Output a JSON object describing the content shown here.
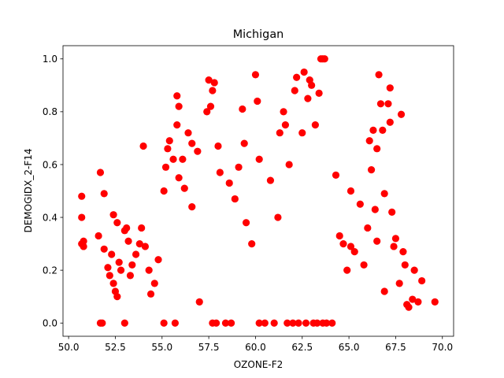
{
  "chart_data": {
    "type": "scatter",
    "title": "Michigan",
    "xlabel": "OZONE-F2",
    "ylabel": "DEMOGIDX_2-F14",
    "xlim": [
      49.7,
      70.6
    ],
    "ylim": [
      -0.05,
      1.05
    ],
    "xticks": [
      "50.0",
      "52.5",
      "55.0",
      "57.5",
      "60.0",
      "62.5",
      "65.0",
      "67.5",
      "70.0"
    ],
    "yticks": [
      "0.0",
      "0.2",
      "0.4",
      "0.6",
      "0.8",
      "1.0"
    ],
    "grid": false,
    "legend": "none",
    "marker_color": "#ff0000",
    "series": [
      {
        "values": [
          [
            50.7,
            0.48
          ],
          [
            50.7,
            0.4
          ],
          [
            50.7,
            0.3
          ],
          [
            50.8,
            0.31
          ],
          [
            50.8,
            0.29
          ],
          [
            51.6,
            0.33
          ],
          [
            51.7,
            0.57
          ],
          [
            51.7,
            0.0
          ],
          [
            51.8,
            0.0
          ],
          [
            51.9,
            0.49
          ],
          [
            51.9,
            0.28
          ],
          [
            52.1,
            0.21
          ],
          [
            52.2,
            0.18
          ],
          [
            52.3,
            0.26
          ],
          [
            52.4,
            0.41
          ],
          [
            52.4,
            0.15
          ],
          [
            52.5,
            0.12
          ],
          [
            52.6,
            0.1
          ],
          [
            52.6,
            0.38
          ],
          [
            52.7,
            0.23
          ],
          [
            52.8,
            0.2
          ],
          [
            53.0,
            0.0
          ],
          [
            53.0,
            0.35
          ],
          [
            53.1,
            0.36
          ],
          [
            53.2,
            0.31
          ],
          [
            53.3,
            0.18
          ],
          [
            53.4,
            0.22
          ],
          [
            53.6,
            0.26
          ],
          [
            53.8,
            0.3
          ],
          [
            53.9,
            0.36
          ],
          [
            54.0,
            0.67
          ],
          [
            54.1,
            0.29
          ],
          [
            54.3,
            0.2
          ],
          [
            54.4,
            0.11
          ],
          [
            54.6,
            0.15
          ],
          [
            54.8,
            0.24
          ],
          [
            55.1,
            0.0
          ],
          [
            55.1,
            0.5
          ],
          [
            55.2,
            0.59
          ],
          [
            55.3,
            0.66
          ],
          [
            55.4,
            0.69
          ],
          [
            55.6,
            0.62
          ],
          [
            55.7,
            0.0
          ],
          [
            55.8,
            0.75
          ],
          [
            55.8,
            0.86
          ],
          [
            55.9,
            0.82
          ],
          [
            55.9,
            0.55
          ],
          [
            56.1,
            0.62
          ],
          [
            56.2,
            0.51
          ],
          [
            56.4,
            0.72
          ],
          [
            56.6,
            0.68
          ],
          [
            56.6,
            0.44
          ],
          [
            56.9,
            0.65
          ],
          [
            57.0,
            0.08
          ],
          [
            57.4,
            0.8
          ],
          [
            57.5,
            0.92
          ],
          [
            57.6,
            0.82
          ],
          [
            57.7,
            0.88
          ],
          [
            57.8,
            0.91
          ],
          [
            57.7,
            0.0
          ],
          [
            57.9,
            0.0
          ],
          [
            58.0,
            0.67
          ],
          [
            58.1,
            0.57
          ],
          [
            58.4,
            0.0
          ],
          [
            58.7,
            0.0
          ],
          [
            58.6,
            0.53
          ],
          [
            58.9,
            0.47
          ],
          [
            59.1,
            0.59
          ],
          [
            59.3,
            0.81
          ],
          [
            59.4,
            0.68
          ],
          [
            59.5,
            0.38
          ],
          [
            59.8,
            0.3
          ],
          [
            60.0,
            0.94
          ],
          [
            60.1,
            0.84
          ],
          [
            60.2,
            0.62
          ],
          [
            60.2,
            0.0
          ],
          [
            60.5,
            0.0
          ],
          [
            60.8,
            0.54
          ],
          [
            61.0,
            0.0
          ],
          [
            61.2,
            0.4
          ],
          [
            61.3,
            0.72
          ],
          [
            61.5,
            0.8
          ],
          [
            61.6,
            0.75
          ],
          [
            61.7,
            0.0
          ],
          [
            61.8,
            0.6
          ],
          [
            62.0,
            0.0
          ],
          [
            62.1,
            0.88
          ],
          [
            62.2,
            0.93
          ],
          [
            62.3,
            0.0
          ],
          [
            62.5,
            0.72
          ],
          [
            62.6,
            0.95
          ],
          [
            62.7,
            0.0
          ],
          [
            62.8,
            0.85
          ],
          [
            62.9,
            0.92
          ],
          [
            63.0,
            0.9
          ],
          [
            63.1,
            0.0
          ],
          [
            63.2,
            0.75
          ],
          [
            63.3,
            0.0
          ],
          [
            63.4,
            0.87
          ],
          [
            63.5,
            1.0
          ],
          [
            63.6,
            1.0
          ],
          [
            63.7,
            1.0
          ],
          [
            63.6,
            0.0
          ],
          [
            63.8,
            0.0
          ],
          [
            64.1,
            0.0
          ],
          [
            64.3,
            0.56
          ],
          [
            64.5,
            0.33
          ],
          [
            64.7,
            0.3
          ],
          [
            64.9,
            0.2
          ],
          [
            65.1,
            0.5
          ],
          [
            65.1,
            0.29
          ],
          [
            65.3,
            0.27
          ],
          [
            65.6,
            0.45
          ],
          [
            65.8,
            0.22
          ],
          [
            66.0,
            0.36
          ],
          [
            66.1,
            0.69
          ],
          [
            66.2,
            0.58
          ],
          [
            66.3,
            0.73
          ],
          [
            66.4,
            0.43
          ],
          [
            66.5,
            0.66
          ],
          [
            66.5,
            0.31
          ],
          [
            66.6,
            0.94
          ],
          [
            66.7,
            0.83
          ],
          [
            66.8,
            0.73
          ],
          [
            66.9,
            0.49
          ],
          [
            66.9,
            0.12
          ],
          [
            67.1,
            0.83
          ],
          [
            67.2,
            0.76
          ],
          [
            67.2,
            0.89
          ],
          [
            67.3,
            0.42
          ],
          [
            67.4,
            0.29
          ],
          [
            67.5,
            0.32
          ],
          [
            67.7,
            0.15
          ],
          [
            67.8,
            0.79
          ],
          [
            67.9,
            0.27
          ],
          [
            68.0,
            0.22
          ],
          [
            68.1,
            0.07
          ],
          [
            68.2,
            0.06
          ],
          [
            68.4,
            0.09
          ],
          [
            68.5,
            0.2
          ],
          [
            68.7,
            0.08
          ],
          [
            68.9,
            0.16
          ],
          [
            69.6,
            0.08
          ]
        ]
      }
    ]
  }
}
